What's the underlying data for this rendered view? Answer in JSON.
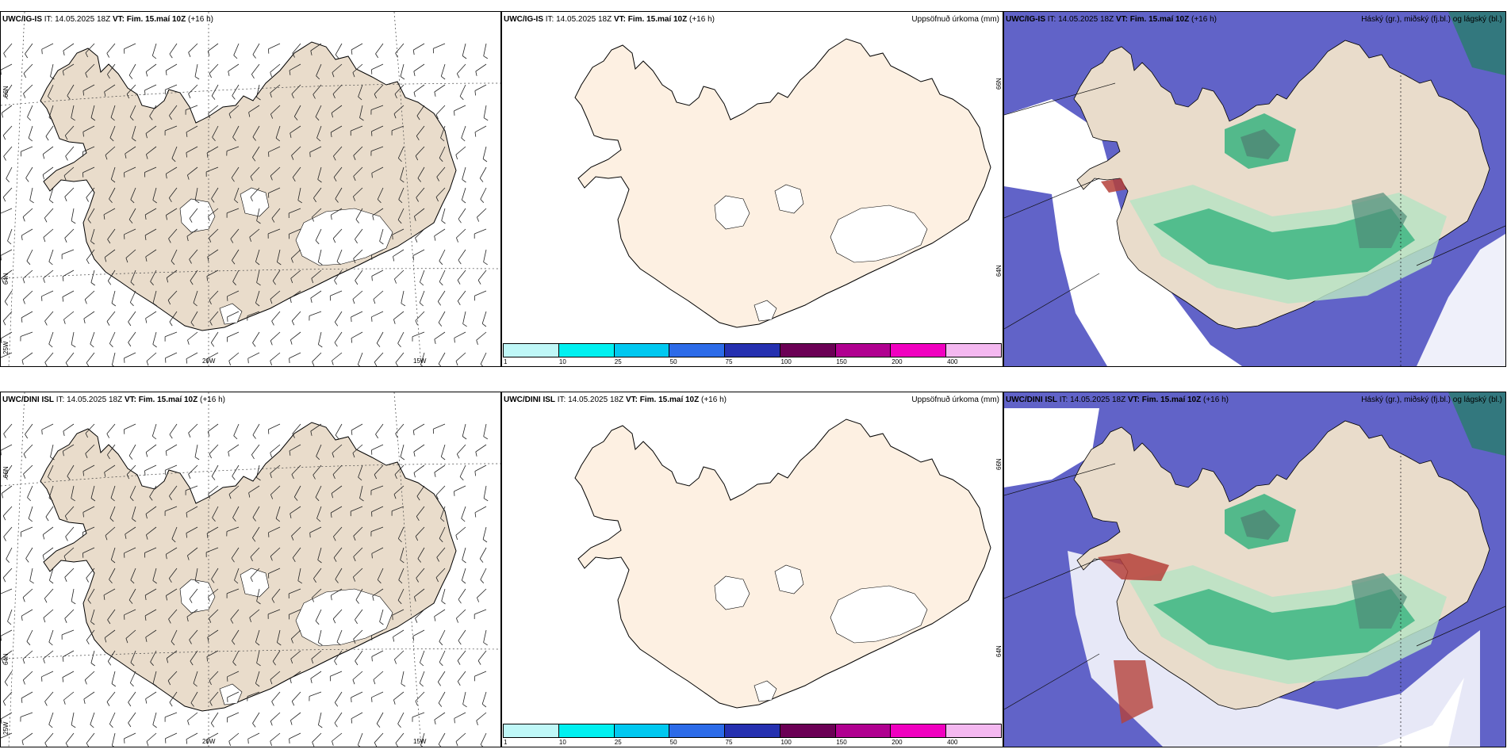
{
  "rows": [
    {
      "model": "UWC/IG-IS",
      "it": "IT: 14.05.2025 18Z",
      "vt_label": "VT:",
      "vt": "Fim. 15.maí 10Z",
      "lead": "(+16 h)"
    },
    {
      "model": "UWC/DINI ISL",
      "it": "IT: 14.05.2025 18Z",
      "vt_label": "VT:",
      "vt": "Fim. 15.maí 10Z",
      "lead": "(+16 h)"
    }
  ],
  "titles": {
    "precip": "Uppsöfnuð úrkoma (mm)",
    "cloud": "Háský (gr.), miðský (fj.bl.) og lágský (bl.)"
  },
  "wind_panel_ticks": {
    "lat_66": "66N",
    "lat_64": "64N",
    "lon_25": "25W",
    "lon_20": "20W",
    "lon_15": "15W"
  },
  "precip_panel_ticks": {
    "lat_66": "66N",
    "lat_64": "64N"
  },
  "precip_colorbar": {
    "labels": [
      "1",
      "10",
      "25",
      "50",
      "75",
      "100",
      "150",
      "200",
      "400"
    ],
    "colors": [
      "#bff7f7",
      "#00f0f0",
      "#00c8f0",
      "#2c6be8",
      "#2530b0",
      "#6b0055",
      "#b00090",
      "#f000c0",
      "#f4b8f0"
    ]
  },
  "colors": {
    "land_wind": "#e9dccb",
    "land_precip": "#fdf0e2",
    "sea_cloud_low": "#6163c8",
    "cloud_green_light": "#b8e3c4",
    "cloud_green_mid": "#2db07a",
    "cloud_green_dark": "#4f8c77",
    "cloud_red": "#b5413a"
  }
}
